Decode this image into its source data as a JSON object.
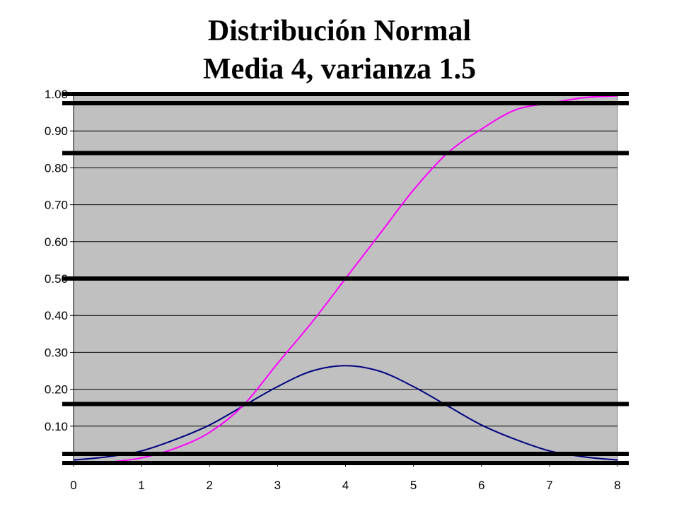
{
  "chart_data": {
    "type": "line",
    "title": "Distribución Normal",
    "subtitle": "Media 4, varianza 1.5",
    "xlabel": "",
    "ylabel": "",
    "xlim": [
      0,
      8
    ],
    "ylim": [
      0,
      1.0
    ],
    "x_tick_labels": [
      "0",
      "1",
      "2",
      "3",
      "4",
      "5",
      "6",
      "7",
      "8"
    ],
    "y_tick_labels": [
      "-",
      "0.10",
      "0.20",
      "0.30",
      "0.40",
      "0.50",
      "0.60",
      "0.70",
      "0.80",
      "0.90",
      "1.00"
    ],
    "grid": true,
    "plot_background": "#c0c0c0",
    "series": [
      {
        "color": "#000080",
        "x": [
          0,
          0.5,
          1,
          1.5,
          2,
          2.5,
          3,
          3.5,
          4,
          4.5,
          5,
          5.5,
          6,
          6.5,
          7,
          7.5,
          8
        ],
        "values": [
          0.008,
          0.017,
          0.033,
          0.064,
          0.103,
          0.155,
          0.207,
          0.249,
          0.264,
          0.249,
          0.207,
          0.155,
          0.103,
          0.064,
          0.033,
          0.017,
          0.008
        ]
      },
      {
        "color": "#ff00ff",
        "x": [
          0.5,
          1,
          1.5,
          2,
          2.5,
          3,
          3.5,
          4,
          4.5,
          5,
          5.5,
          6,
          6.5,
          7,
          7.5,
          8
        ],
        "values": [
          0.002,
          0.014,
          0.04,
          0.083,
          0.157,
          0.27,
          0.38,
          0.5,
          0.62,
          0.74,
          0.84,
          0.905,
          0.957,
          0.975,
          0.99,
          0.995
        ]
      }
    ],
    "horizontal_rules": [
      1.0,
      0.975,
      0.84,
      0.5,
      0.16,
      0.025,
      0.0
    ],
    "rule_color": "#000000"
  }
}
